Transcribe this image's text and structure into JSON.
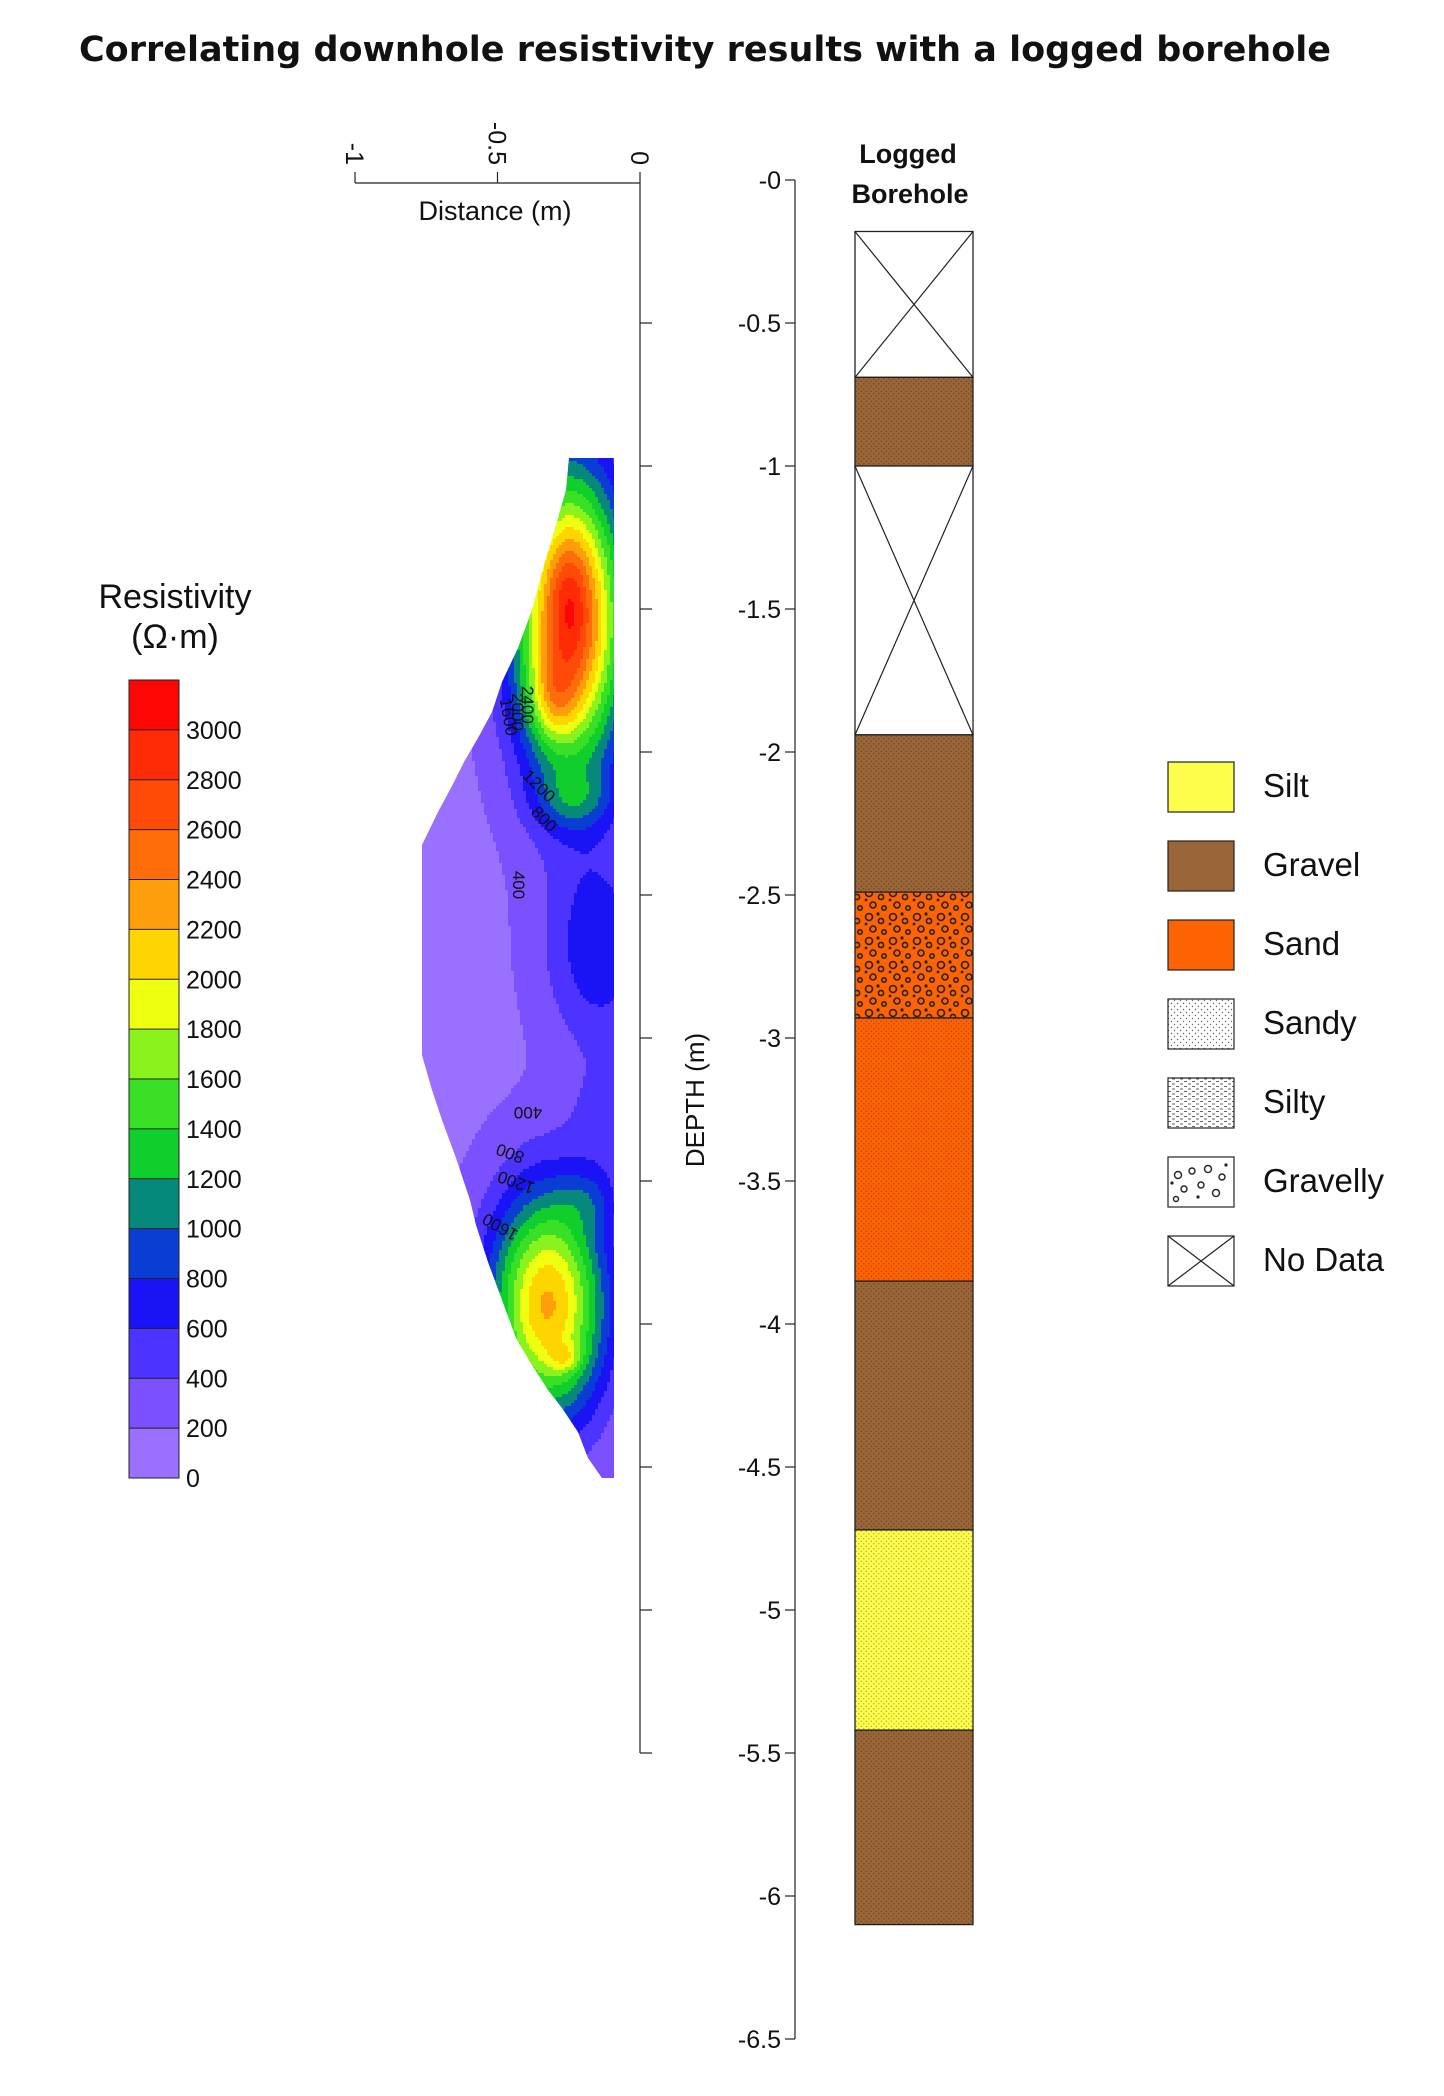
{
  "chart_data": {
    "title": "Correlating downhole resistivity results with a logged borehole",
    "type": "heatmap",
    "colorbar": {
      "title_line1": "Resistivity",
      "title_line2": "(Ω·m)",
      "tick_labels": [
        "3000",
        "2800",
        "2600",
        "2400",
        "2200",
        "2000",
        "1800",
        "1600",
        "1400",
        "1200",
        "1000",
        "800",
        "600",
        "400",
        "200",
        "0"
      ],
      "levels": [
        {
          "from": 0,
          "to": 200,
          "color": "#9a70ff"
        },
        {
          "from": 200,
          "to": 400,
          "color": "#7a50ff"
        },
        {
          "from": 400,
          "to": 600,
          "color": "#4d33ff"
        },
        {
          "from": 600,
          "to": 800,
          "color": "#1a13f5"
        },
        {
          "from": 800,
          "to": 1000,
          "color": "#0a3dd3"
        },
        {
          "from": 1000,
          "to": 1200,
          "color": "#06887a"
        },
        {
          "from": 1200,
          "to": 1400,
          "color": "#10cf2c"
        },
        {
          "from": 1400,
          "to": 1600,
          "color": "#3ae026"
        },
        {
          "from": 1600,
          "to": 1800,
          "color": "#8af21c"
        },
        {
          "from": 1800,
          "to": 2000,
          "color": "#eeff10"
        },
        {
          "from": 2000,
          "to": 2200,
          "color": "#ffd500"
        },
        {
          "from": 2200,
          "to": 2400,
          "color": "#ff9d0a"
        },
        {
          "from": 2400,
          "to": 2600,
          "color": "#ff6d0a"
        },
        {
          "from": 2600,
          "to": 2800,
          "color": "#ff4a08"
        },
        {
          "from": 2800,
          "to": 3000,
          "color": "#ff2a06"
        },
        {
          "from": 3000,
          "to": 3200,
          "color": "#ff0606"
        }
      ]
    },
    "distance_axis": {
      "label": "Distance (m)",
      "range": [
        -1,
        0
      ],
      "ticks": [
        -1,
        -0.5,
        0
      ],
      "tick_labels": [
        "-1",
        "-0.5",
        "0"
      ]
    },
    "depth_axis": {
      "label": "DEPTH (m)",
      "range": [
        -6.5,
        0
      ],
      "ticks": [
        0,
        -0.5,
        -1,
        -1.5,
        -2,
        -2.5,
        -3,
        -3.5,
        -4,
        -4.5,
        -5,
        -5.5,
        -6,
        -6.5
      ],
      "tick_labels": [
        "-0",
        "-0.5",
        "-1",
        "-1.5",
        "-2",
        "-2.5",
        "-3",
        "-3.5",
        "-4",
        "-4.5",
        "-5",
        "-5.5",
        "-6",
        "-6.5"
      ]
    },
    "contour_labels": [
      "2400",
      "2000",
      "1600",
      "1200",
      "800",
      "400",
      "400",
      "800",
      "1200",
      "1600"
    ],
    "borehole": {
      "title_line1": "Logged",
      "title_line2": "Borehole",
      "layers": [
        {
          "top": -0.18,
          "bottom": -0.69,
          "material": "No Data"
        },
        {
          "top": -0.69,
          "bottom": -1.0,
          "material": "Gravel"
        },
        {
          "top": -1.0,
          "bottom": -1.94,
          "material": "No Data"
        },
        {
          "top": -1.94,
          "bottom": -2.49,
          "material": "Gravel"
        },
        {
          "top": -2.49,
          "bottom": -2.93,
          "material": "Sand",
          "modifier": "Gravelly"
        },
        {
          "top": -2.93,
          "bottom": -3.85,
          "material": "Sand"
        },
        {
          "top": -3.85,
          "bottom": -4.72,
          "material": "Gravel"
        },
        {
          "top": -4.72,
          "bottom": -5.42,
          "material": "Silt"
        },
        {
          "top": -5.42,
          "bottom": -6.1,
          "material": "Gravel"
        }
      ]
    },
    "legend": {
      "placement": "right",
      "items": [
        {
          "label": "Silt",
          "color": "#fdfd4c",
          "pattern": "solid"
        },
        {
          "label": "Gravel",
          "color": "#9a6537",
          "pattern": "solid"
        },
        {
          "label": "Sand",
          "color": "#fe6303",
          "pattern": "solid"
        },
        {
          "label": "Sandy",
          "color": "#ffffff",
          "pattern": "dots"
        },
        {
          "label": "Silty",
          "color": "#ffffff",
          "pattern": "dashes"
        },
        {
          "label": "Gravelly",
          "color": "#ffffff",
          "pattern": "circles"
        },
        {
          "label": "No Data",
          "color": "#ffffff",
          "pattern": "cross"
        }
      ]
    }
  }
}
